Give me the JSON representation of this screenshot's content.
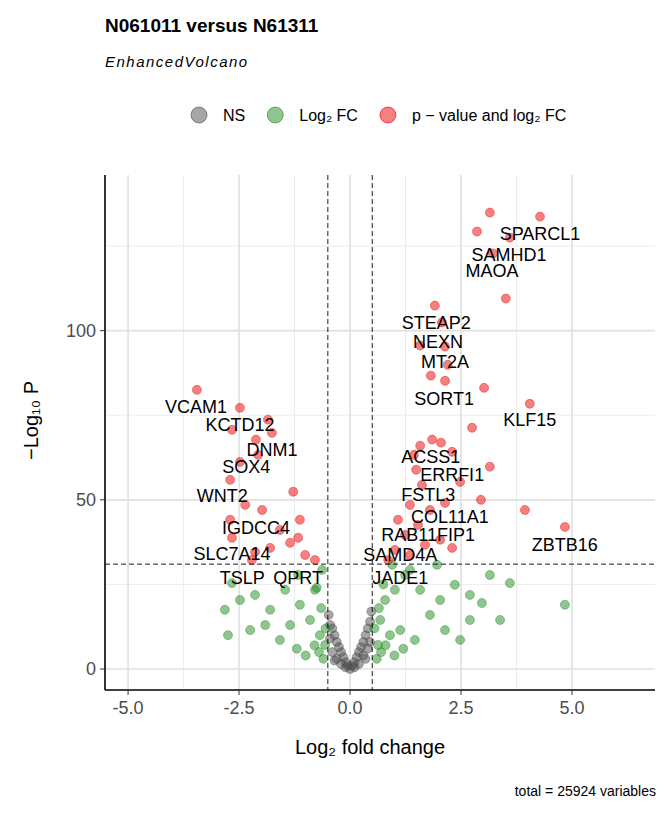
{
  "chart_data": {
    "type": "scatter",
    "title": "N061011 versus N61311",
    "subtitle": "EnhancedVolcano",
    "caption": "total = 25924 variables",
    "x_label": "Log₂ fold change",
    "y_label": "−Log₁₀ P",
    "xlim": [
      -5.52,
      6.87
    ],
    "ylim": [
      -6.2,
      146
    ],
    "xticks": [
      {
        "value": -5,
        "label": "-5.0"
      },
      {
        "value": -2.5,
        "label": "-2.5"
      },
      {
        "value": 0,
        "label": "0.0"
      },
      {
        "value": 2.5,
        "label": "2.5"
      },
      {
        "value": 5,
        "label": "5.0"
      }
    ],
    "yticks": [
      0,
      50,
      100
    ],
    "grid": true,
    "legend": "top",
    "reference_lines": {
      "x": [
        -0.5,
        0.5
      ],
      "y": [
        31
      ]
    },
    "series": [
      {
        "name": "NS",
        "color": "#4d4d4d",
        "marker": "circle",
        "x": [
          0,
          0.05,
          -0.05,
          0.1,
          -0.1,
          0.15,
          -0.15,
          0.2,
          -0.2,
          0.25,
          -0.25,
          0.3,
          -0.3,
          0.35,
          -0.35,
          0.4,
          -0.4,
          0.45,
          -0.45,
          0.48,
          -0.48,
          0.3,
          -0.3,
          0.4,
          -0.4,
          0.2,
          -0.2,
          0.45,
          -0.45,
          0.1,
          -0.1,
          0.35,
          -0.35
        ],
        "values": [
          0,
          1,
          1,
          2,
          2,
          3.5,
          3.5,
          5,
          5,
          6.5,
          6.5,
          8,
          8,
          10,
          10,
          12,
          12,
          14,
          13,
          17,
          16,
          4,
          3,
          6,
          5,
          1.5,
          1.5,
          8,
          9,
          0.5,
          0.5,
          3,
          2.5
        ]
      },
      {
        "name": "Log₂ FC",
        "color": "#228b22",
        "marker": "circle",
        "x": [
          4.84,
          3.6,
          3.15,
          2.97,
          2.7,
          2.36,
          2.03,
          2.7,
          1.8,
          1.58,
          1.24,
          1.01,
          0.79,
          0.68,
          0.9,
          0.63,
          1.13,
          1.46,
          2.14,
          3.38,
          2.48,
          0.95,
          1.35,
          1.96,
          -2.66,
          -2.48,
          -2.82,
          -2.14,
          -1.8,
          -1.91,
          -1.46,
          -1.13,
          -0.9,
          -0.68,
          -0.56,
          -0.79,
          -1.17,
          -1.58,
          -2.25,
          -0.63,
          -1.35,
          -2.75,
          0.6,
          0.7,
          0.8,
          -0.6,
          -0.7,
          -0.8,
          1.0,
          -1.0,
          1.2,
          -1.2,
          0.55,
          -0.55,
          0.65,
          -0.65,
          0.75,
          -0.75
        ],
        "values": [
          19,
          25.4,
          27.8,
          19.5,
          21.9,
          24.9,
          20.4,
          14.5,
          16,
          23.4,
          27.8,
          23.4,
          20.4,
          14.5,
          10,
          7.1,
          11.5,
          8.6,
          11.5,
          14.5,
          8.6,
          30.8,
          29.3,
          30.8,
          25.4,
          20.4,
          17.5,
          21.9,
          17.5,
          13,
          23.4,
          19,
          14.5,
          10,
          7.1,
          23.4,
          27.8,
          8.6,
          11.5,
          29.3,
          13,
          10,
          3,
          5,
          7,
          3,
          5,
          7,
          4,
          4,
          6,
          6,
          12,
          12,
          18,
          18,
          25,
          24
        ]
      },
      {
        "name": "p − value and log₂ FC",
        "color": "#ee0000",
        "marker": "circle",
        "x": [
          3.15,
          4.28,
          2.86,
          3.6,
          3.22,
          3.51,
          1.91,
          2.07,
          1.58,
          2.14,
          2.2,
          1.82,
          2.14,
          3.02,
          4.05,
          2.75,
          1.85,
          2.05,
          1.58,
          1.44,
          2.3,
          3.15,
          1.49,
          1.62,
          2.48,
          2.95,
          2.14,
          1.35,
          1.8,
          3.94,
          1.08,
          1.53,
          4.84,
          1.24,
          2.03,
          1.69,
          1.01,
          1.35,
          2.3,
          0.86,
          -3.45,
          -2.48,
          -1.85,
          -2.66,
          -2.12,
          -1.76,
          -2.48,
          -2.07,
          -1.28,
          -2.7,
          -1.98,
          -2.36,
          -2.7,
          -1.13,
          -1.58,
          -2.66,
          -1.35,
          -1.8,
          -2.14,
          -1.01,
          -0.79,
          -1.17,
          -2.21
        ],
        "values": [
          134.9,
          133.7,
          129.3,
          127.5,
          122.8,
          109.5,
          107.4,
          102.4,
          95.6,
          95.3,
          89.9,
          86.7,
          85.2,
          83.1,
          78.4,
          71.3,
          67.8,
          66.9,
          66,
          63.3,
          64.2,
          59.8,
          58.9,
          54.4,
          55.3,
          50,
          49.1,
          48.5,
          47,
          47,
          44.1,
          42.6,
          42,
          39.6,
          38.2,
          36.7,
          35.2,
          33.7,
          35.8,
          32.2,
          82.5,
          77.2,
          73.7,
          70.7,
          67.8,
          69.8,
          61.2,
          63.3,
          52.4,
          55.9,
          47,
          48.5,
          44.1,
          44.1,
          41.1,
          38.8,
          37.3,
          35.8,
          34.6,
          33.7,
          32.2,
          38.8,
          32.2
        ]
      }
    ],
    "annotations": [
      {
        "text": "SPARCL1",
        "x": 4.28,
        "y": 128.7
      },
      {
        "text": "SAMHD1",
        "x": 3.58,
        "y": 122.5
      },
      {
        "text": "MAOA",
        "x": 3.2,
        "y": 117.5
      },
      {
        "text": "STEAP2",
        "x": 1.94,
        "y": 102.4
      },
      {
        "text": "NEXN",
        "x": 1.98,
        "y": 96.7
      },
      {
        "text": "MT2A",
        "x": 2.14,
        "y": 90.8
      },
      {
        "text": "SORT1",
        "x": 2.12,
        "y": 79.9
      },
      {
        "text": "KLF15",
        "x": 4.05,
        "y": 73.7
      },
      {
        "text": "VCAM1",
        "x": -3.47,
        "y": 77.5
      },
      {
        "text": "KCTD12",
        "x": -2.48,
        "y": 72.2
      },
      {
        "text": "DNM1",
        "x": -1.76,
        "y": 64.8
      },
      {
        "text": "SOX4",
        "x": -2.34,
        "y": 59.8
      },
      {
        "text": "WNT2",
        "x": -2.88,
        "y": 51.2
      },
      {
        "text": "ACSS1",
        "x": 1.82,
        "y": 62.7
      },
      {
        "text": "ERRFI1",
        "x": 2.3,
        "y": 57.4
      },
      {
        "text": "FSTL3",
        "x": 1.76,
        "y": 51.5
      },
      {
        "text": "COL11A1",
        "x": 2.25,
        "y": 45
      },
      {
        "text": "RAB11FIP1",
        "x": 1.76,
        "y": 39.6
      },
      {
        "text": "IGDCC4",
        "x": -2.12,
        "y": 41.7
      },
      {
        "text": "ZBTB16",
        "x": 4.84,
        "y": 36.7
      },
      {
        "text": "SLC7A14",
        "x": -2.66,
        "y": 34
      },
      {
        "text": "SAMD4A",
        "x": 1.13,
        "y": 33.7
      },
      {
        "text": "TSLP",
        "x": -2.43,
        "y": 26.9
      },
      {
        "text": "QPRT",
        "x": -1.17,
        "y": 26.9
      },
      {
        "text": "JADE1",
        "x": 1.13,
        "y": 26.9
      }
    ]
  }
}
